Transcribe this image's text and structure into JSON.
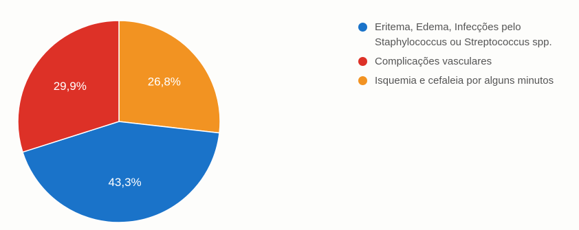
{
  "chart_data": {
    "type": "pie",
    "title": "",
    "slices": [
      {
        "label": "Eritema, Edema, Infecções pelo Staphylococcus ou Streptococcus spp.",
        "value": 43.3,
        "value_label": "43,3%",
        "color": "#1a73c9"
      },
      {
        "label": "Complicações vasculares",
        "value": 29.9,
        "value_label": "29,9%",
        "color": "#dd3127"
      },
      {
        "label": "Isquemia e cefaleia por alguns minutos",
        "value": 26.8,
        "value_label": "26,8%",
        "color": "#f29322"
      }
    ],
    "start": "12 o'clock, clockwise",
    "legend": "right"
  }
}
